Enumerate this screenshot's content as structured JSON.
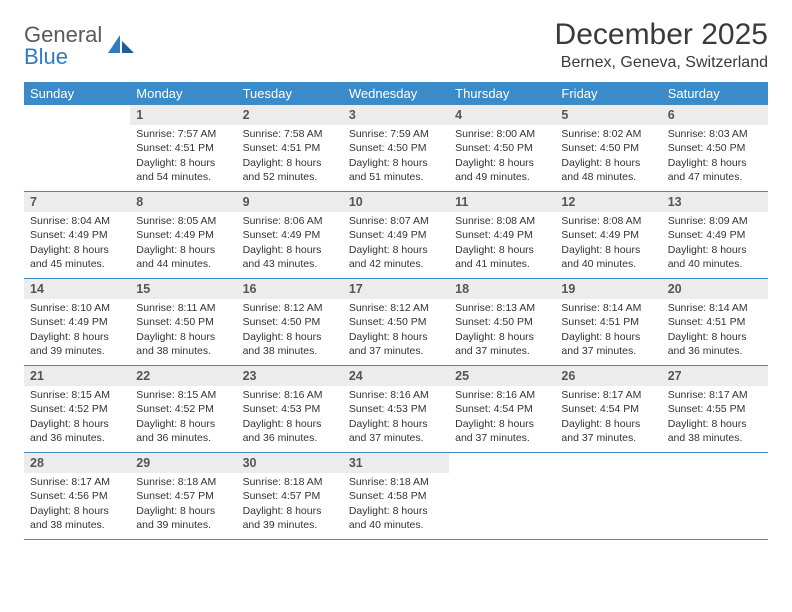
{
  "logo": {
    "word1": "General",
    "word2": "Blue"
  },
  "title": "December 2025",
  "location": "Bernex, Geneva, Switzerland",
  "colors": {
    "header_bg": "#3b8bc9",
    "header_text": "#ffffff",
    "band_bg": "#ececec",
    "band_text": "#555555",
    "body_text": "#333333",
    "rule": "#3b8bc9",
    "logo_grey": "#5a5a5a",
    "logo_blue": "#2f7bbf"
  },
  "typography": {
    "title_fontsize": 30,
    "location_fontsize": 16,
    "dow_fontsize": 13,
    "daynum_fontsize": 12.5,
    "body_fontsize": 10.5
  },
  "days_of_week": [
    "Sunday",
    "Monday",
    "Tuesday",
    "Wednesday",
    "Thursday",
    "Friday",
    "Saturday"
  ],
  "weeks": [
    [
      {
        "num": "",
        "sunrise": "",
        "sunset": "",
        "daylight": ""
      },
      {
        "num": "1",
        "sunrise": "Sunrise: 7:57 AM",
        "sunset": "Sunset: 4:51 PM",
        "daylight": "Daylight: 8 hours and 54 minutes."
      },
      {
        "num": "2",
        "sunrise": "Sunrise: 7:58 AM",
        "sunset": "Sunset: 4:51 PM",
        "daylight": "Daylight: 8 hours and 52 minutes."
      },
      {
        "num": "3",
        "sunrise": "Sunrise: 7:59 AM",
        "sunset": "Sunset: 4:50 PM",
        "daylight": "Daylight: 8 hours and 51 minutes."
      },
      {
        "num": "4",
        "sunrise": "Sunrise: 8:00 AM",
        "sunset": "Sunset: 4:50 PM",
        "daylight": "Daylight: 8 hours and 49 minutes."
      },
      {
        "num": "5",
        "sunrise": "Sunrise: 8:02 AM",
        "sunset": "Sunset: 4:50 PM",
        "daylight": "Daylight: 8 hours and 48 minutes."
      },
      {
        "num": "6",
        "sunrise": "Sunrise: 8:03 AM",
        "sunset": "Sunset: 4:50 PM",
        "daylight": "Daylight: 8 hours and 47 minutes."
      }
    ],
    [
      {
        "num": "7",
        "sunrise": "Sunrise: 8:04 AM",
        "sunset": "Sunset: 4:49 PM",
        "daylight": "Daylight: 8 hours and 45 minutes."
      },
      {
        "num": "8",
        "sunrise": "Sunrise: 8:05 AM",
        "sunset": "Sunset: 4:49 PM",
        "daylight": "Daylight: 8 hours and 44 minutes."
      },
      {
        "num": "9",
        "sunrise": "Sunrise: 8:06 AM",
        "sunset": "Sunset: 4:49 PM",
        "daylight": "Daylight: 8 hours and 43 minutes."
      },
      {
        "num": "10",
        "sunrise": "Sunrise: 8:07 AM",
        "sunset": "Sunset: 4:49 PM",
        "daylight": "Daylight: 8 hours and 42 minutes."
      },
      {
        "num": "11",
        "sunrise": "Sunrise: 8:08 AM",
        "sunset": "Sunset: 4:49 PM",
        "daylight": "Daylight: 8 hours and 41 minutes."
      },
      {
        "num": "12",
        "sunrise": "Sunrise: 8:08 AM",
        "sunset": "Sunset: 4:49 PM",
        "daylight": "Daylight: 8 hours and 40 minutes."
      },
      {
        "num": "13",
        "sunrise": "Sunrise: 8:09 AM",
        "sunset": "Sunset: 4:49 PM",
        "daylight": "Daylight: 8 hours and 40 minutes."
      }
    ],
    [
      {
        "num": "14",
        "sunrise": "Sunrise: 8:10 AM",
        "sunset": "Sunset: 4:49 PM",
        "daylight": "Daylight: 8 hours and 39 minutes."
      },
      {
        "num": "15",
        "sunrise": "Sunrise: 8:11 AM",
        "sunset": "Sunset: 4:50 PM",
        "daylight": "Daylight: 8 hours and 38 minutes."
      },
      {
        "num": "16",
        "sunrise": "Sunrise: 8:12 AM",
        "sunset": "Sunset: 4:50 PM",
        "daylight": "Daylight: 8 hours and 38 minutes."
      },
      {
        "num": "17",
        "sunrise": "Sunrise: 8:12 AM",
        "sunset": "Sunset: 4:50 PM",
        "daylight": "Daylight: 8 hours and 37 minutes."
      },
      {
        "num": "18",
        "sunrise": "Sunrise: 8:13 AM",
        "sunset": "Sunset: 4:50 PM",
        "daylight": "Daylight: 8 hours and 37 minutes."
      },
      {
        "num": "19",
        "sunrise": "Sunrise: 8:14 AM",
        "sunset": "Sunset: 4:51 PM",
        "daylight": "Daylight: 8 hours and 37 minutes."
      },
      {
        "num": "20",
        "sunrise": "Sunrise: 8:14 AM",
        "sunset": "Sunset: 4:51 PM",
        "daylight": "Daylight: 8 hours and 36 minutes."
      }
    ],
    [
      {
        "num": "21",
        "sunrise": "Sunrise: 8:15 AM",
        "sunset": "Sunset: 4:52 PM",
        "daylight": "Daylight: 8 hours and 36 minutes."
      },
      {
        "num": "22",
        "sunrise": "Sunrise: 8:15 AM",
        "sunset": "Sunset: 4:52 PM",
        "daylight": "Daylight: 8 hours and 36 minutes."
      },
      {
        "num": "23",
        "sunrise": "Sunrise: 8:16 AM",
        "sunset": "Sunset: 4:53 PM",
        "daylight": "Daylight: 8 hours and 36 minutes."
      },
      {
        "num": "24",
        "sunrise": "Sunrise: 8:16 AM",
        "sunset": "Sunset: 4:53 PM",
        "daylight": "Daylight: 8 hours and 37 minutes."
      },
      {
        "num": "25",
        "sunrise": "Sunrise: 8:16 AM",
        "sunset": "Sunset: 4:54 PM",
        "daylight": "Daylight: 8 hours and 37 minutes."
      },
      {
        "num": "26",
        "sunrise": "Sunrise: 8:17 AM",
        "sunset": "Sunset: 4:54 PM",
        "daylight": "Daylight: 8 hours and 37 minutes."
      },
      {
        "num": "27",
        "sunrise": "Sunrise: 8:17 AM",
        "sunset": "Sunset: 4:55 PM",
        "daylight": "Daylight: 8 hours and 38 minutes."
      }
    ],
    [
      {
        "num": "28",
        "sunrise": "Sunrise: 8:17 AM",
        "sunset": "Sunset: 4:56 PM",
        "daylight": "Daylight: 8 hours and 38 minutes."
      },
      {
        "num": "29",
        "sunrise": "Sunrise: 8:18 AM",
        "sunset": "Sunset: 4:57 PM",
        "daylight": "Daylight: 8 hours and 39 minutes."
      },
      {
        "num": "30",
        "sunrise": "Sunrise: 8:18 AM",
        "sunset": "Sunset: 4:57 PM",
        "daylight": "Daylight: 8 hours and 39 minutes."
      },
      {
        "num": "31",
        "sunrise": "Sunrise: 8:18 AM",
        "sunset": "Sunset: 4:58 PM",
        "daylight": "Daylight: 8 hours and 40 minutes."
      },
      {
        "num": "",
        "sunrise": "",
        "sunset": "",
        "daylight": ""
      },
      {
        "num": "",
        "sunrise": "",
        "sunset": "",
        "daylight": ""
      },
      {
        "num": "",
        "sunrise": "",
        "sunset": "",
        "daylight": ""
      }
    ]
  ]
}
